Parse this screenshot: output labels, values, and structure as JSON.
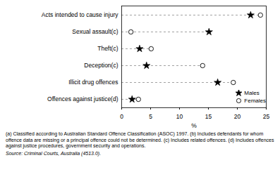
{
  "chart_data": {
    "type": "dot",
    "orientation": "horizontal",
    "categories": [
      "Acts intended to cause injury",
      "Sexual assault(c)",
      "Theft(c)",
      "Deception(c)",
      "Illicit drug offences",
      "Offences against justice(d)"
    ],
    "series": [
      {
        "name": "Males",
        "color": "#000000",
        "marker": "star",
        "values": [
          22.3,
          15.1,
          3.1,
          4.3,
          16.6,
          1.8
        ]
      },
      {
        "name": "Females",
        "color": "#000000",
        "marker": "circle-open",
        "values": [
          24.0,
          1.6,
          5.1,
          14.0,
          19.3,
          2.9
        ]
      }
    ],
    "xlabel": "%",
    "xlim": [
      0,
      25
    ],
    "xticks": [
      0,
      5,
      10,
      15,
      20,
      25
    ],
    "line_style": "dashed",
    "legend": "bottom-right",
    "notes": "(a) Classified according to Australian Standard Offence Classification (ASOC) 1997. (b) Includes defendants for whom offence data are missing or a principal offence could not be determined. (c) Includes related offences. (d) Includes offences against justice procedures, government security and operations.",
    "source": "Source: Criminal Courts, Australia (4513.0)."
  }
}
